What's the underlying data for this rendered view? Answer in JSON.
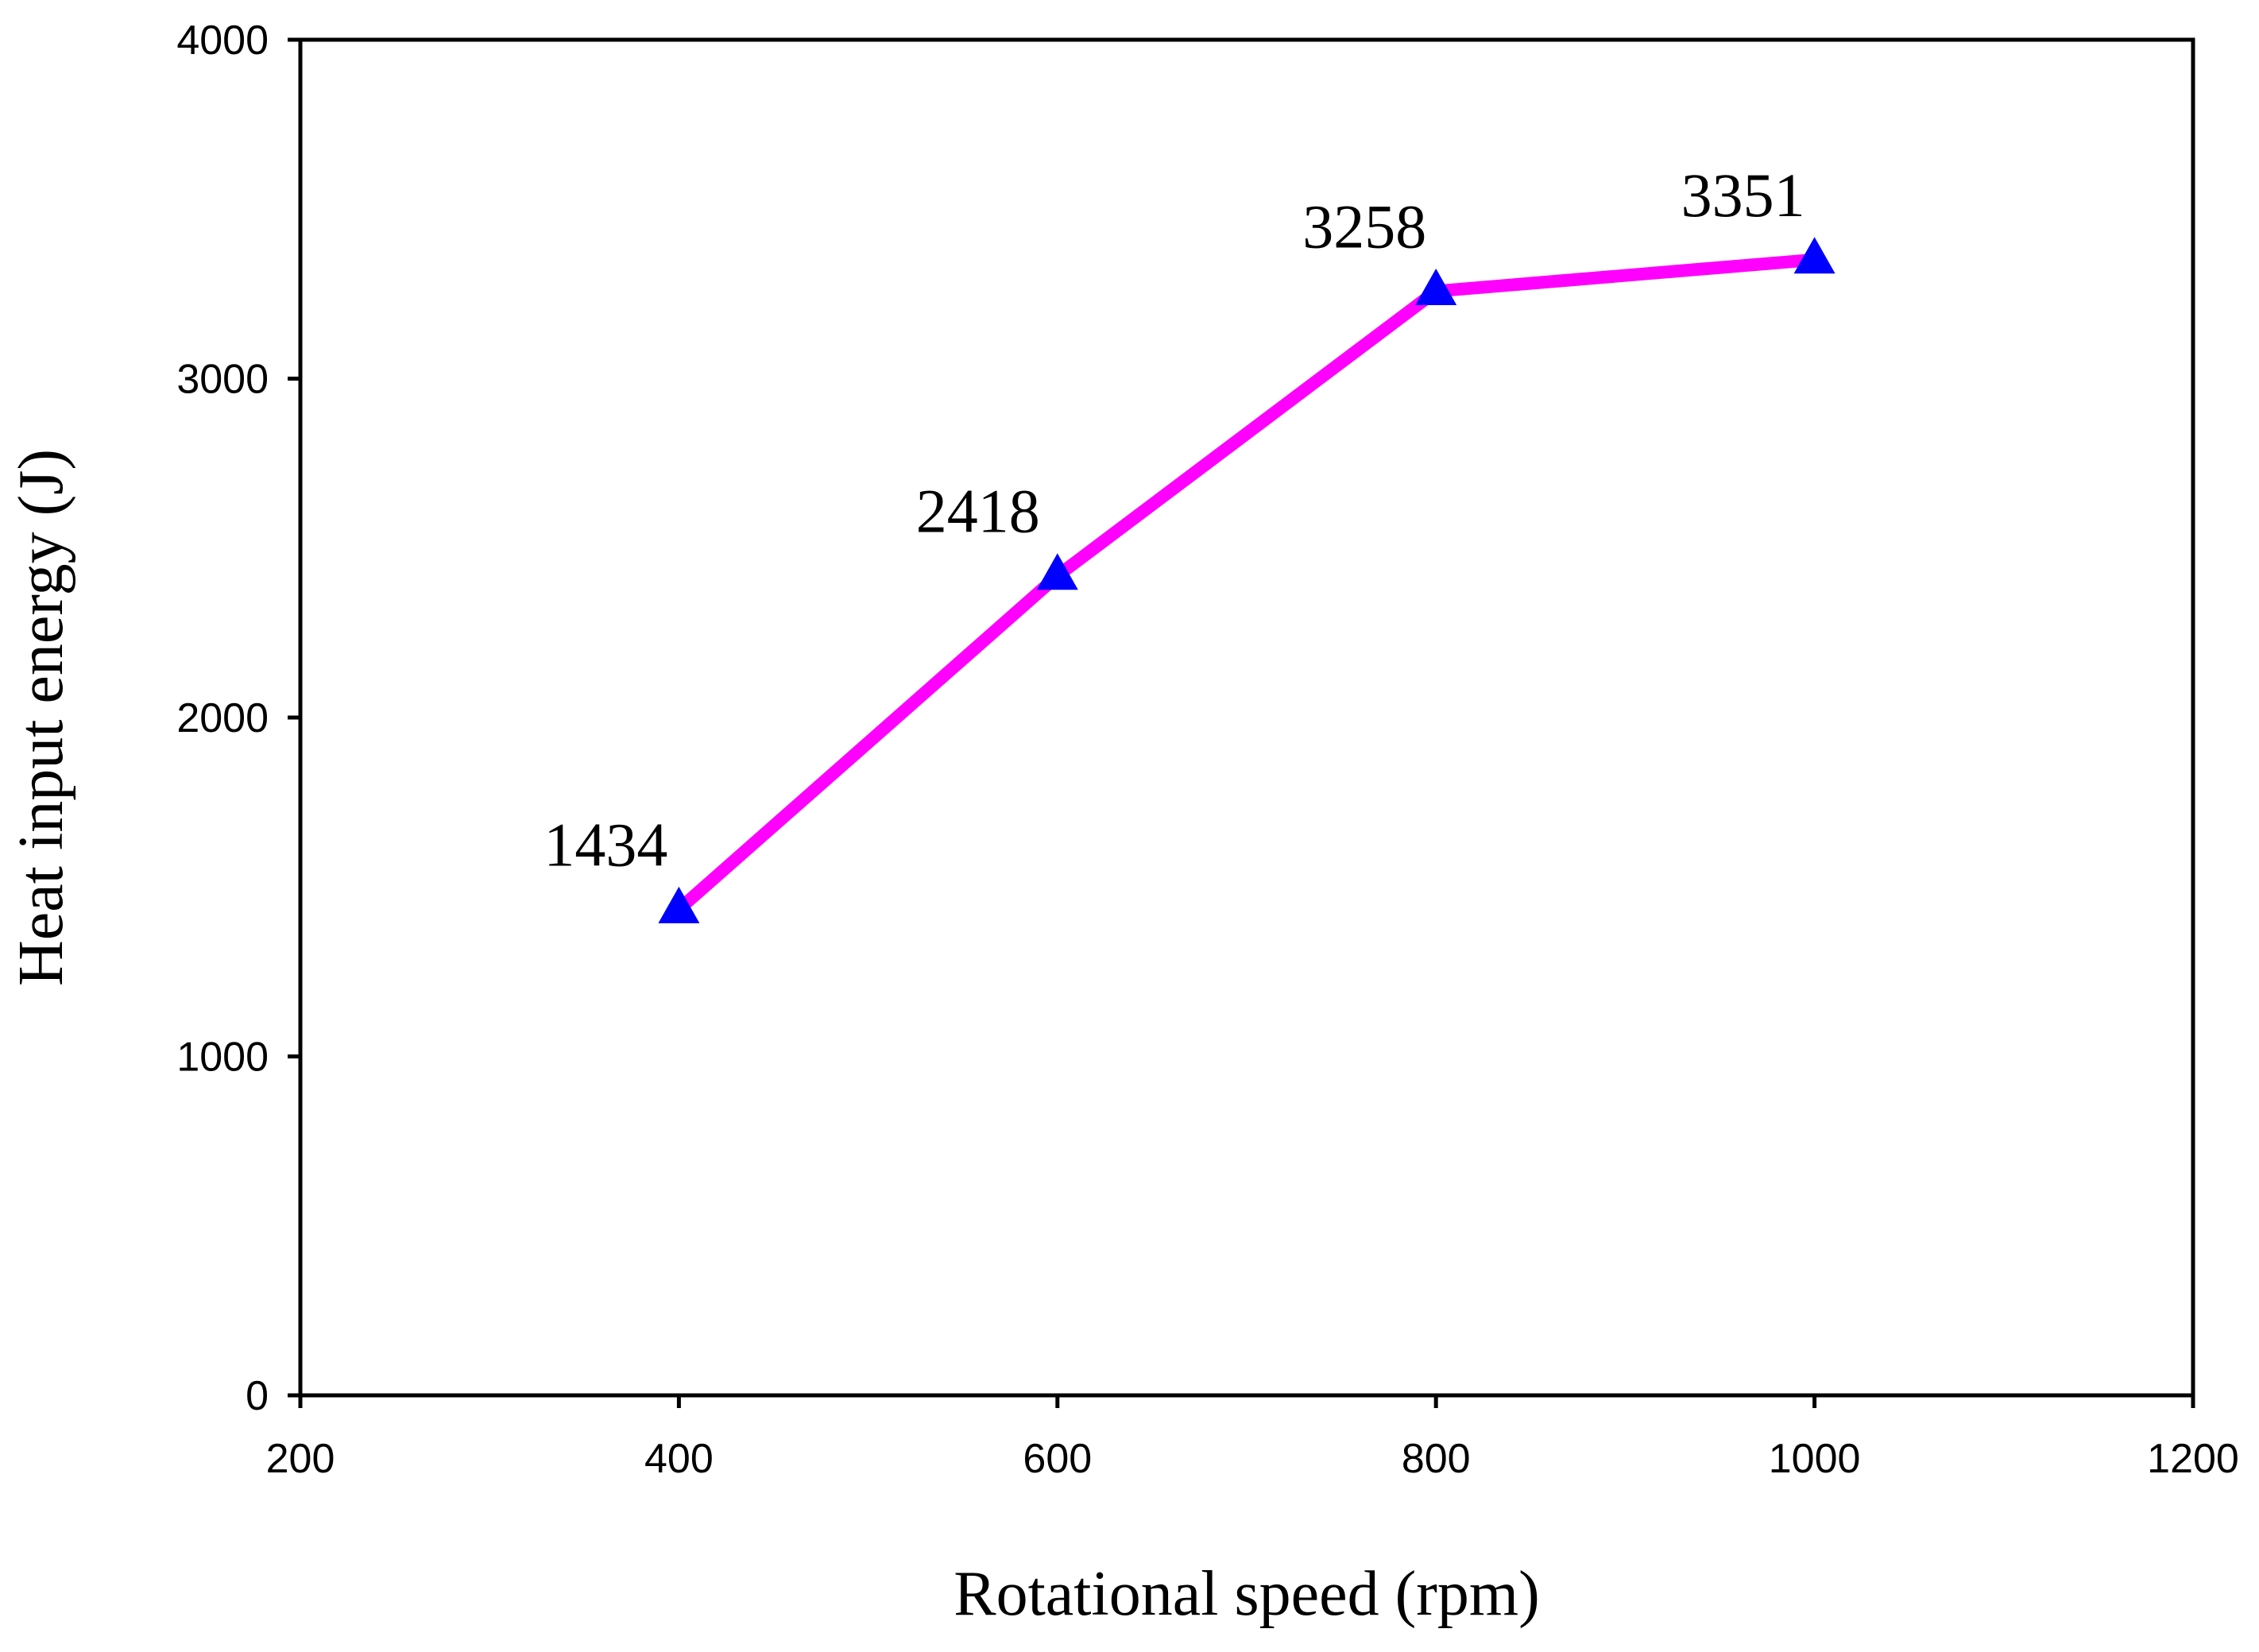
{
  "chart_data": {
    "type": "line",
    "title": "",
    "xlabel": "Rotational speed (rpm)",
    "ylabel": "Heat input energy (J)",
    "xlim": [
      200,
      1200
    ],
    "ylim": [
      0,
      4000
    ],
    "x_ticks": [
      200,
      400,
      600,
      800,
      1000,
      1200
    ],
    "y_ticks": [
      0,
      1000,
      2000,
      3000,
      4000
    ],
    "x_tick_labels": [
      "200",
      "400",
      "600",
      "800",
      "1000",
      "1200"
    ],
    "y_tick_labels": [
      "0",
      "1000",
      "2000",
      "3000",
      "4000"
    ],
    "grid": false,
    "series": [
      {
        "name": "Heat input energy",
        "x": [
          400,
          600,
          800,
          1000
        ],
        "values": [
          1434,
          2418,
          3258,
          3351
        ],
        "labels": [
          "1434",
          "2418",
          "3258",
          "3351"
        ],
        "line_color": "#ff00ff",
        "marker": "triangle",
        "marker_color": "#0000ff"
      }
    ]
  }
}
